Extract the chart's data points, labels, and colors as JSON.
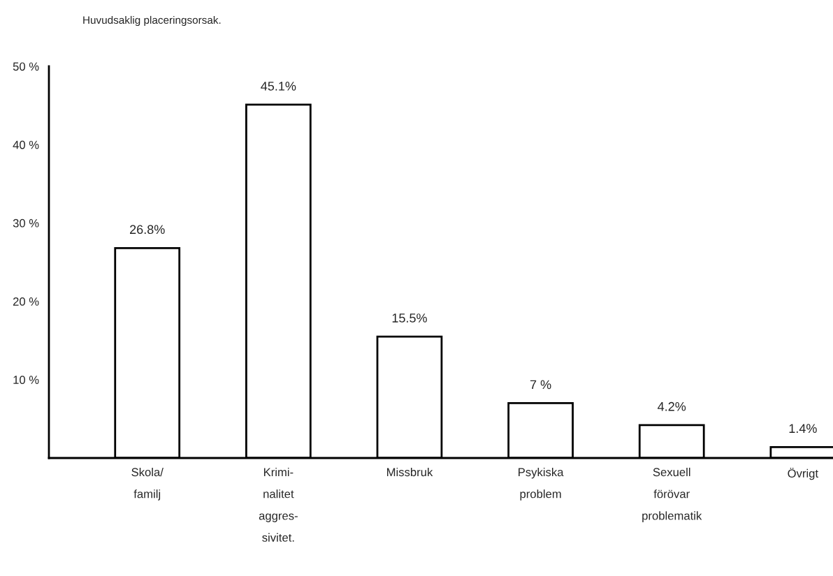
{
  "chart_data": {
    "type": "bar",
    "title": "Huvudsaklig placeringsorsak.",
    "categories": [
      "Skola/\nfamilj",
      "Krimi-\nnalitet\naggres-\nsivitet.",
      "Missbruk",
      "Psykiska\nproblem",
      "Sexuell\nförövar\nproblematik",
      "Övrigt"
    ],
    "values": [
      26.8,
      45.1,
      15.5,
      7,
      4.2,
      1.4
    ],
    "value_labels": [
      "26.8%",
      "45.1%",
      "15.5%",
      "7 %",
      "4.2%",
      "1.4%"
    ],
    "color": "#ffffff",
    "ylim": [
      0,
      50
    ],
    "yticks": [
      {
        "value": 0,
        "label": null
      },
      {
        "value": 10,
        "label": "10 %"
      },
      {
        "value": 20,
        "label": "20 %"
      },
      {
        "value": 30,
        "label": "30 %"
      },
      {
        "value": 40,
        "label": "40 %"
      },
      {
        "value": 50,
        "label": "50 %"
      }
    ],
    "grid": false,
    "legend": false
  }
}
